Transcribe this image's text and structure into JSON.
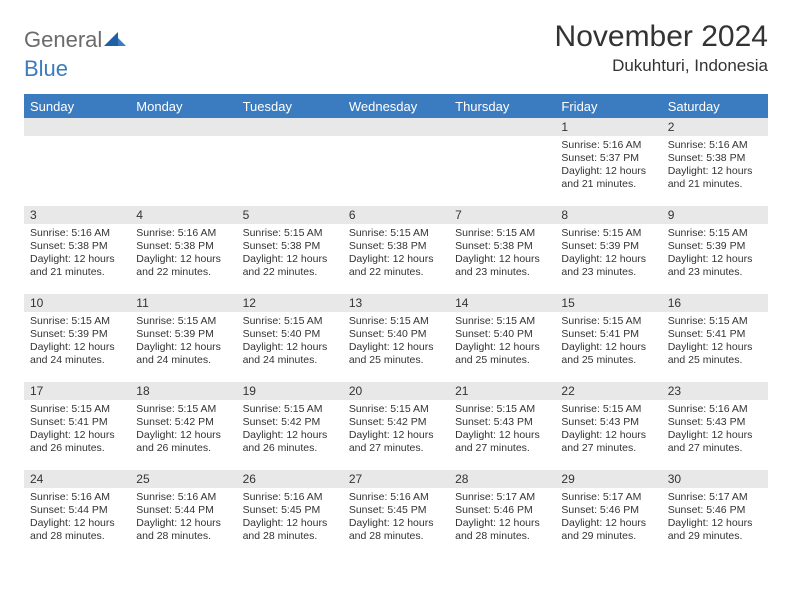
{
  "brand": {
    "part1": "General",
    "part2": "Blue"
  },
  "title": "November 2024",
  "location": "Dukuhturi, Indonesia",
  "colors": {
    "header_bg": "#3b7bbf",
    "header_text": "#ffffff",
    "daybar_bg": "#e8e8e8",
    "text": "#333333",
    "logo_gray": "#6b6b6b",
    "logo_blue": "#3b7bbf",
    "page_bg": "#ffffff"
  },
  "fonts": {
    "title_size_pt": 22,
    "location_size_pt": 13,
    "header_size_pt": 10,
    "body_size_pt": 8
  },
  "weekdays": [
    "Sunday",
    "Monday",
    "Tuesday",
    "Wednesday",
    "Thursday",
    "Friday",
    "Saturday"
  ],
  "weeks": [
    [
      {
        "day": null
      },
      {
        "day": null
      },
      {
        "day": null
      },
      {
        "day": null
      },
      {
        "day": null
      },
      {
        "day": 1,
        "sunrise": "5:16 AM",
        "sunset": "5:37 PM",
        "daylight": "12 hours and 21 minutes."
      },
      {
        "day": 2,
        "sunrise": "5:16 AM",
        "sunset": "5:38 PM",
        "daylight": "12 hours and 21 minutes."
      }
    ],
    [
      {
        "day": 3,
        "sunrise": "5:16 AM",
        "sunset": "5:38 PM",
        "daylight": "12 hours and 21 minutes."
      },
      {
        "day": 4,
        "sunrise": "5:16 AM",
        "sunset": "5:38 PM",
        "daylight": "12 hours and 22 minutes."
      },
      {
        "day": 5,
        "sunrise": "5:15 AM",
        "sunset": "5:38 PM",
        "daylight": "12 hours and 22 minutes."
      },
      {
        "day": 6,
        "sunrise": "5:15 AM",
        "sunset": "5:38 PM",
        "daylight": "12 hours and 22 minutes."
      },
      {
        "day": 7,
        "sunrise": "5:15 AM",
        "sunset": "5:38 PM",
        "daylight": "12 hours and 23 minutes."
      },
      {
        "day": 8,
        "sunrise": "5:15 AM",
        "sunset": "5:39 PM",
        "daylight": "12 hours and 23 minutes."
      },
      {
        "day": 9,
        "sunrise": "5:15 AM",
        "sunset": "5:39 PM",
        "daylight": "12 hours and 23 minutes."
      }
    ],
    [
      {
        "day": 10,
        "sunrise": "5:15 AM",
        "sunset": "5:39 PM",
        "daylight": "12 hours and 24 minutes."
      },
      {
        "day": 11,
        "sunrise": "5:15 AM",
        "sunset": "5:39 PM",
        "daylight": "12 hours and 24 minutes."
      },
      {
        "day": 12,
        "sunrise": "5:15 AM",
        "sunset": "5:40 PM",
        "daylight": "12 hours and 24 minutes."
      },
      {
        "day": 13,
        "sunrise": "5:15 AM",
        "sunset": "5:40 PM",
        "daylight": "12 hours and 25 minutes."
      },
      {
        "day": 14,
        "sunrise": "5:15 AM",
        "sunset": "5:40 PM",
        "daylight": "12 hours and 25 minutes."
      },
      {
        "day": 15,
        "sunrise": "5:15 AM",
        "sunset": "5:41 PM",
        "daylight": "12 hours and 25 minutes."
      },
      {
        "day": 16,
        "sunrise": "5:15 AM",
        "sunset": "5:41 PM",
        "daylight": "12 hours and 25 minutes."
      }
    ],
    [
      {
        "day": 17,
        "sunrise": "5:15 AM",
        "sunset": "5:41 PM",
        "daylight": "12 hours and 26 minutes."
      },
      {
        "day": 18,
        "sunrise": "5:15 AM",
        "sunset": "5:42 PM",
        "daylight": "12 hours and 26 minutes."
      },
      {
        "day": 19,
        "sunrise": "5:15 AM",
        "sunset": "5:42 PM",
        "daylight": "12 hours and 26 minutes."
      },
      {
        "day": 20,
        "sunrise": "5:15 AM",
        "sunset": "5:42 PM",
        "daylight": "12 hours and 27 minutes."
      },
      {
        "day": 21,
        "sunrise": "5:15 AM",
        "sunset": "5:43 PM",
        "daylight": "12 hours and 27 minutes."
      },
      {
        "day": 22,
        "sunrise": "5:15 AM",
        "sunset": "5:43 PM",
        "daylight": "12 hours and 27 minutes."
      },
      {
        "day": 23,
        "sunrise": "5:16 AM",
        "sunset": "5:43 PM",
        "daylight": "12 hours and 27 minutes."
      }
    ],
    [
      {
        "day": 24,
        "sunrise": "5:16 AM",
        "sunset": "5:44 PM",
        "daylight": "12 hours and 28 minutes."
      },
      {
        "day": 25,
        "sunrise": "5:16 AM",
        "sunset": "5:44 PM",
        "daylight": "12 hours and 28 minutes."
      },
      {
        "day": 26,
        "sunrise": "5:16 AM",
        "sunset": "5:45 PM",
        "daylight": "12 hours and 28 minutes."
      },
      {
        "day": 27,
        "sunrise": "5:16 AM",
        "sunset": "5:45 PM",
        "daylight": "12 hours and 28 minutes."
      },
      {
        "day": 28,
        "sunrise": "5:17 AM",
        "sunset": "5:46 PM",
        "daylight": "12 hours and 28 minutes."
      },
      {
        "day": 29,
        "sunrise": "5:17 AM",
        "sunset": "5:46 PM",
        "daylight": "12 hours and 29 minutes."
      },
      {
        "day": 30,
        "sunrise": "5:17 AM",
        "sunset": "5:46 PM",
        "daylight": "12 hours and 29 minutes."
      }
    ]
  ],
  "labels": {
    "sunrise": "Sunrise:",
    "sunset": "Sunset:",
    "daylight": "Daylight:"
  }
}
